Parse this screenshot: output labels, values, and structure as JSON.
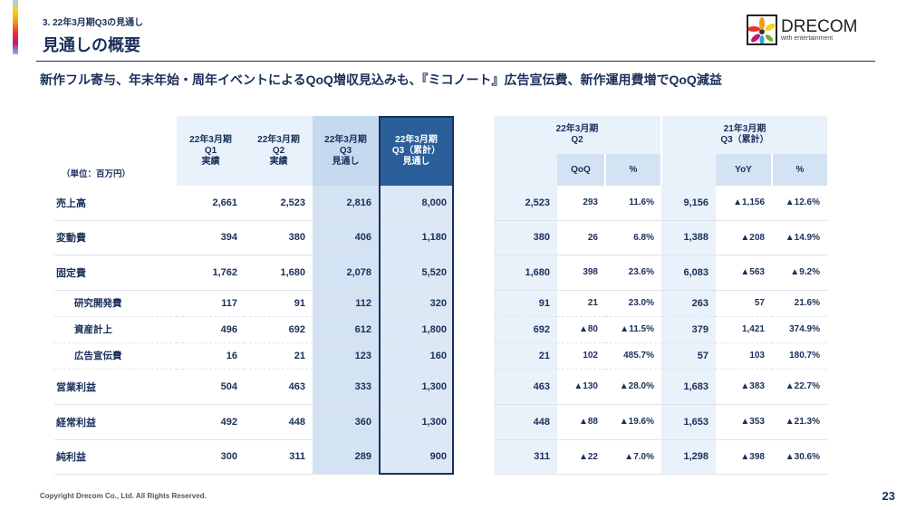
{
  "header": {
    "section": "3. 22年3月期Q3の見通し",
    "title": "見通しの概要",
    "headline": "新作フル寄与、年末年始・周年イベントによるQoQ増収見込みも、『ミコノート』広告宣伝費、新作運用費増でQoQ減益"
  },
  "logo": {
    "brand": "DRECOM",
    "tagline": "with entertainment"
  },
  "left_table": {
    "unit": "（単位：百万円）",
    "columns": [
      [
        "22年3月期",
        "Q1",
        "実績"
      ],
      [
        "22年3月期",
        "Q2",
        "実績"
      ],
      [
        "22年3月期",
        "Q3",
        "見通し"
      ],
      [
        "22年3月期",
        "Q3（累計）",
        "見通し"
      ]
    ],
    "rows": [
      {
        "label": "売上高",
        "values": [
          "2,661",
          "2,523",
          "2,816",
          "8,000"
        ]
      },
      {
        "label": "変動費",
        "values": [
          "394",
          "380",
          "406",
          "1,180"
        ]
      },
      {
        "label": "固定費",
        "values": [
          "1,762",
          "1,680",
          "2,078",
          "5,520"
        ]
      },
      {
        "label": "研究開発費",
        "values": [
          "117",
          "91",
          "112",
          "320"
        ]
      },
      {
        "label": "資産計上",
        "values": [
          "496",
          "692",
          "612",
          "1,800"
        ]
      },
      {
        "label": "広告宣伝費",
        "values": [
          "16",
          "21",
          "123",
          "160"
        ]
      },
      {
        "label": "営業利益",
        "values": [
          "504",
          "463",
          "333",
          "1,300"
        ]
      },
      {
        "label": "経常利益",
        "values": [
          "492",
          "448",
          "360",
          "1,300"
        ]
      },
      {
        "label": "純利益",
        "values": [
          "300",
          "311",
          "289",
          "900"
        ]
      }
    ]
  },
  "right_table": {
    "groups": [
      [
        "22年3月期",
        "Q2"
      ],
      [
        "21年3月期",
        "Q3（累計）"
      ]
    ],
    "subheaders": [
      "QoQ",
      "%",
      "YoY",
      "%"
    ],
    "rows": [
      [
        "2,523",
        "293",
        "11.6%",
        "9,156",
        "▲1,156",
        "▲12.6%"
      ],
      [
        "380",
        "26",
        "6.8%",
        "1,388",
        "▲208",
        "▲14.9%"
      ],
      [
        "1,680",
        "398",
        "23.6%",
        "6,083",
        "▲563",
        "▲9.2%"
      ],
      [
        "91",
        "21",
        "23.0%",
        "263",
        "57",
        "21.6%"
      ],
      [
        "692",
        "▲80",
        "▲11.5%",
        "379",
        "1,421",
        "374.9%"
      ],
      [
        "21",
        "102",
        "485.7%",
        "57",
        "103",
        "180.7%"
      ],
      [
        "463",
        "▲130",
        "▲28.0%",
        "1,683",
        "▲383",
        "▲22.7%"
      ],
      [
        "448",
        "▲88",
        "▲19.6%",
        "1,653",
        "▲353",
        "▲21.3%"
      ],
      [
        "311",
        "▲22",
        "▲7.0%",
        "1,298",
        "▲398",
        "▲30.6%"
      ]
    ]
  },
  "footer": {
    "copyright": "Copyright Drecom Co., Ltd. All Rights Reserved.",
    "page": "23"
  }
}
